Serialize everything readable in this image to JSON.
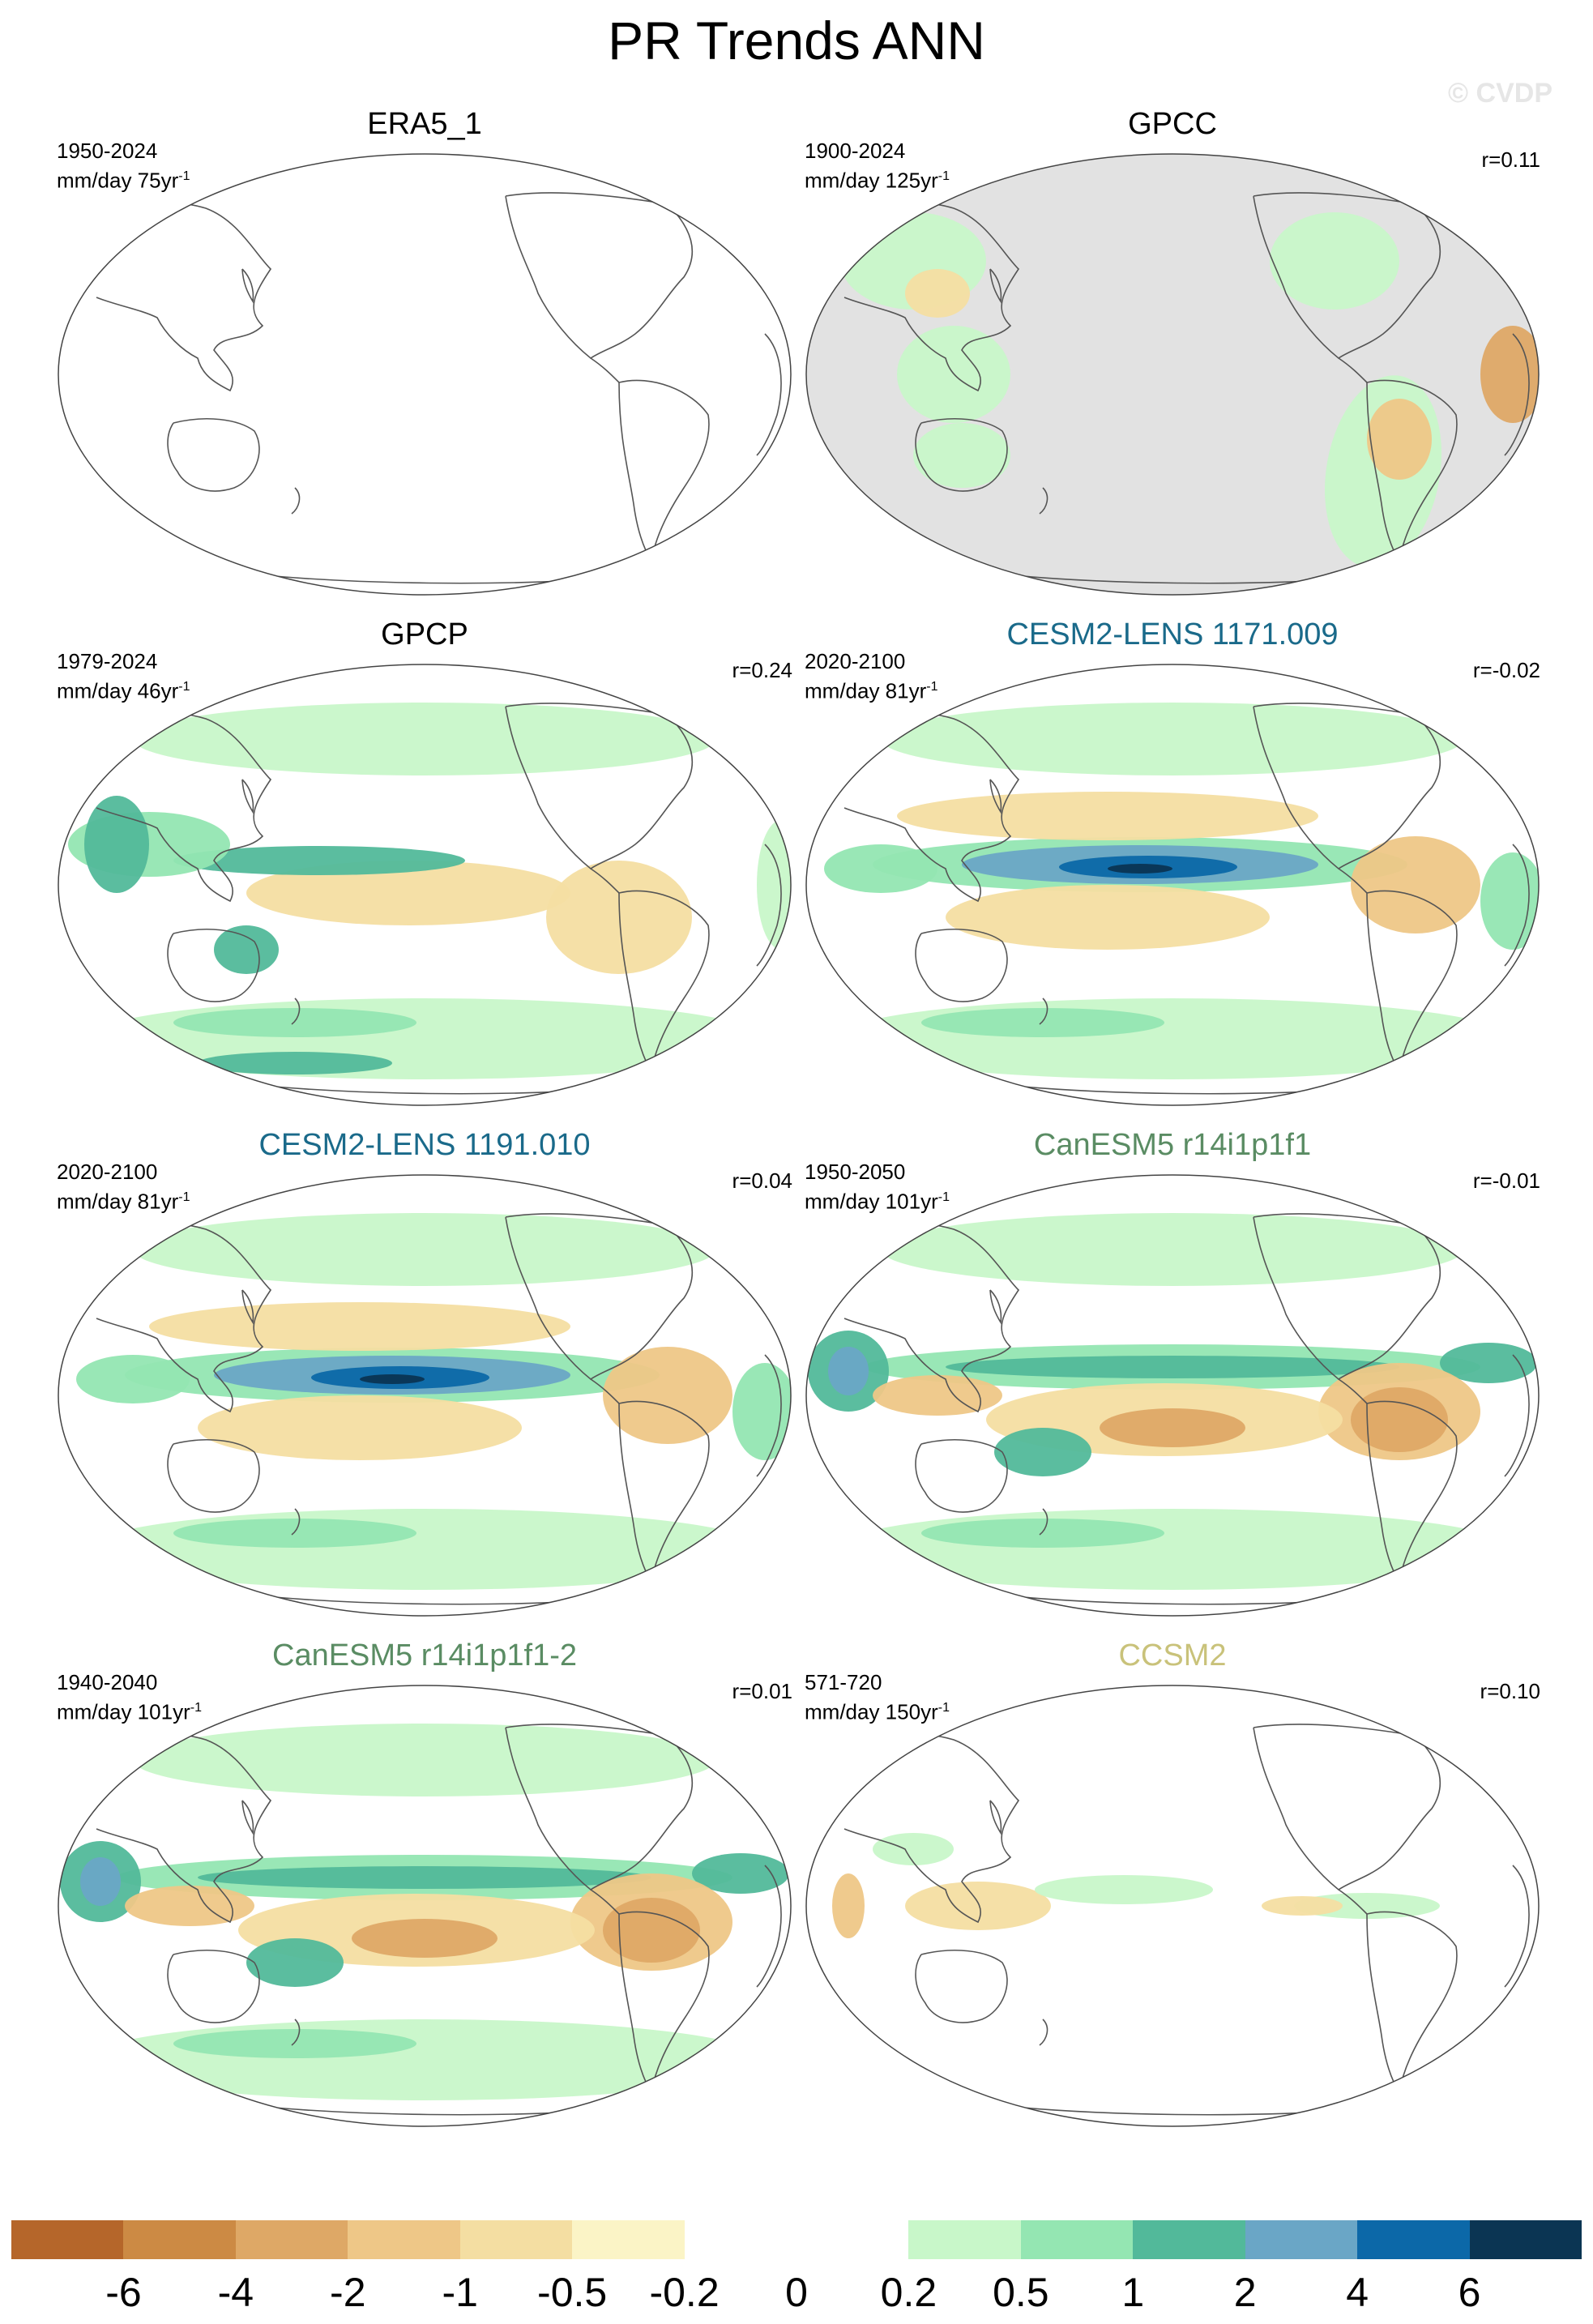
{
  "figure": {
    "title": "PR Trends ANN",
    "watermark": "© CVDP"
  },
  "panels": [
    {
      "title": "ERA5_1",
      "title_color": "#000000",
      "years": "1950-2024",
      "units": "mm/day 75yr",
      "r": "",
      "style": "empty"
    },
    {
      "title": "GPCC",
      "title_color": "#000000",
      "years": "1900-2024",
      "units": "mm/day 125yr",
      "r": "r=0.11",
      "style": "land"
    },
    {
      "title": "GPCP",
      "title_color": "#000000",
      "years": "1979-2024",
      "units": "mm/day 46yr",
      "r": "r=0.24",
      "style": "obs"
    },
    {
      "title": "CESM2-LENS 1171.009",
      "title_color": "#1a6a8a",
      "years": "2020-2100",
      "units": "mm/day 81yr",
      "r": "r=-0.02",
      "style": "model_a"
    },
    {
      "title": "CESM2-LENS 1191.010",
      "title_color": "#1a6a8a",
      "years": "2020-2100",
      "units": "mm/day 81yr",
      "r": "r=0.04",
      "style": "model_a"
    },
    {
      "title": "CanESM5 r14i1p1f1",
      "title_color": "#5a8c63",
      "years": "1950-2050",
      "units": "mm/day 101yr",
      "r": "r=-0.01",
      "style": "model_b"
    },
    {
      "title": "CanESM5 r14i1p1f1-2",
      "title_color": "#5a8c63",
      "years": "1940-2040",
      "units": "mm/day 101yr",
      "r": "r=0.01",
      "style": "model_b"
    },
    {
      "title": "CCSM2",
      "title_color": "#c9c27a",
      "years": "571-720",
      "units": "mm/day 150yr",
      "r": "r=0.10",
      "style": "weak"
    }
  ],
  "units_superscript": "-1",
  "colorbar": {
    "colors": [
      "#b5662a",
      "#cc8a44",
      "#dea866",
      "#eec787",
      "#f4dea2",
      "#fbf4c6",
      "#ffffff",
      "#ffffff",
      "#c8f7c9",
      "#94e6b2",
      "#52b99a",
      "#6aa6c6",
      "#0c68a8",
      "#0b3553"
    ],
    "labels": [
      "-6",
      "-4",
      "-2",
      "-1",
      "-0.5",
      "-0.2",
      "0",
      "0.2",
      "0.5",
      "1",
      "2",
      "4",
      "6"
    ]
  }
}
